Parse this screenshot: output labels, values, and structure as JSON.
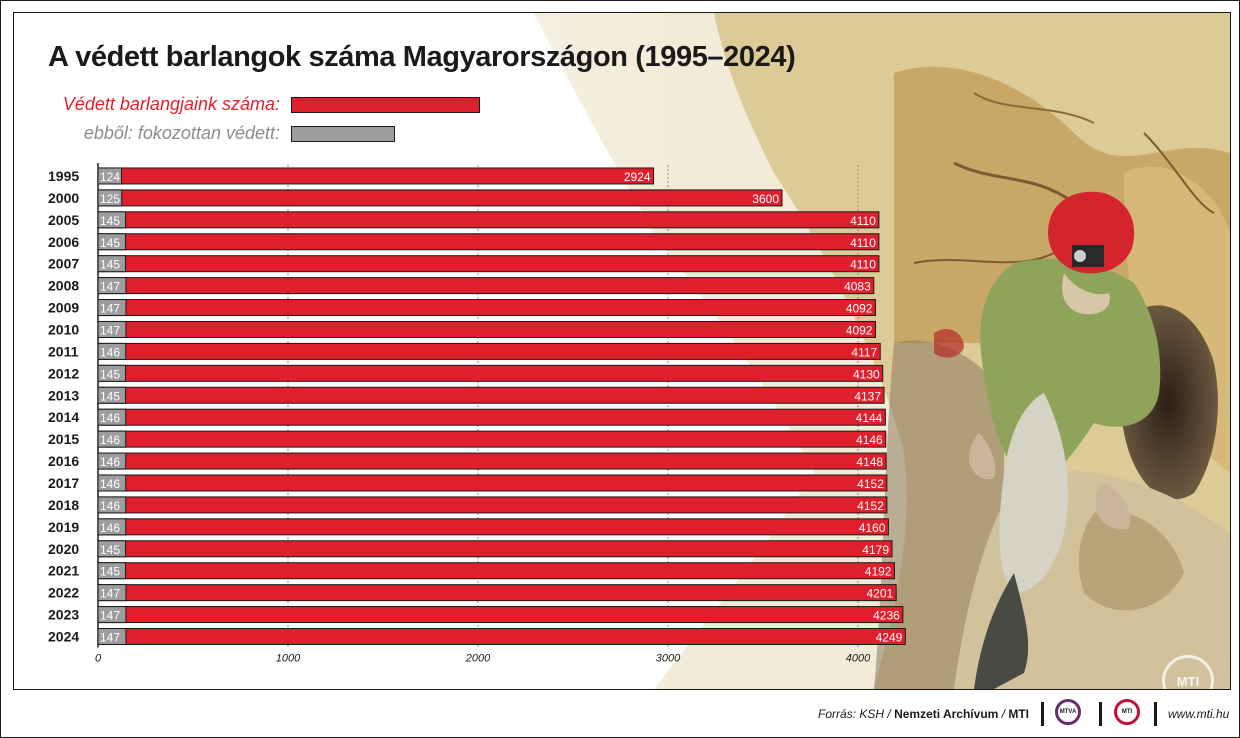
{
  "title": "A védett barlangok száma Magyarországon (1995–2024)",
  "legend": {
    "red_label": "Védett barlangjaink száma:",
    "gray_label": "ebből: fokozottan védett:"
  },
  "colors": {
    "red": "#e01f2d",
    "gray": "#9d9d9f",
    "red_text": "#e01f2d",
    "gray_text": "#8c8c8c"
  },
  "chart_data": {
    "type": "bar",
    "orientation": "horizontal",
    "categories": [
      "1995",
      "2000",
      "2005",
      "2006",
      "2007",
      "2008",
      "2009",
      "2010",
      "2011",
      "2012",
      "2013",
      "2014",
      "2015",
      "2016",
      "2017",
      "2018",
      "2019",
      "2020",
      "2021",
      "2022",
      "2023",
      "2024"
    ],
    "series": [
      {
        "name": "Védett barlangjaink száma",
        "values": [
          2924,
          3600,
          4110,
          4110,
          4110,
          4083,
          4092,
          4092,
          4117,
          4130,
          4137,
          4144,
          4146,
          4148,
          4152,
          4152,
          4160,
          4179,
          4192,
          4201,
          4236,
          4249
        ]
      },
      {
        "name": "ebből: fokozottan védett",
        "values": [
          124,
          125,
          145,
          145,
          145,
          147,
          147,
          147,
          146,
          145,
          145,
          146,
          146,
          146,
          146,
          146,
          146,
          145,
          145,
          147,
          147,
          147
        ]
      }
    ],
    "xlim": [
      0,
      4000
    ],
    "xticks": [
      "0",
      "1000",
      "2000",
      "3000",
      "4000"
    ],
    "grid": true
  },
  "footer": {
    "source_prefix": "Forrás: KSH / ",
    "source_bold1": "Nemzeti Archívum",
    "source_mid": " / ",
    "source_bold2": "MTI",
    "logo1": "MTVA",
    "logo2": "MTI",
    "website": "www.mti.hu",
    "watermark": "MTI"
  }
}
